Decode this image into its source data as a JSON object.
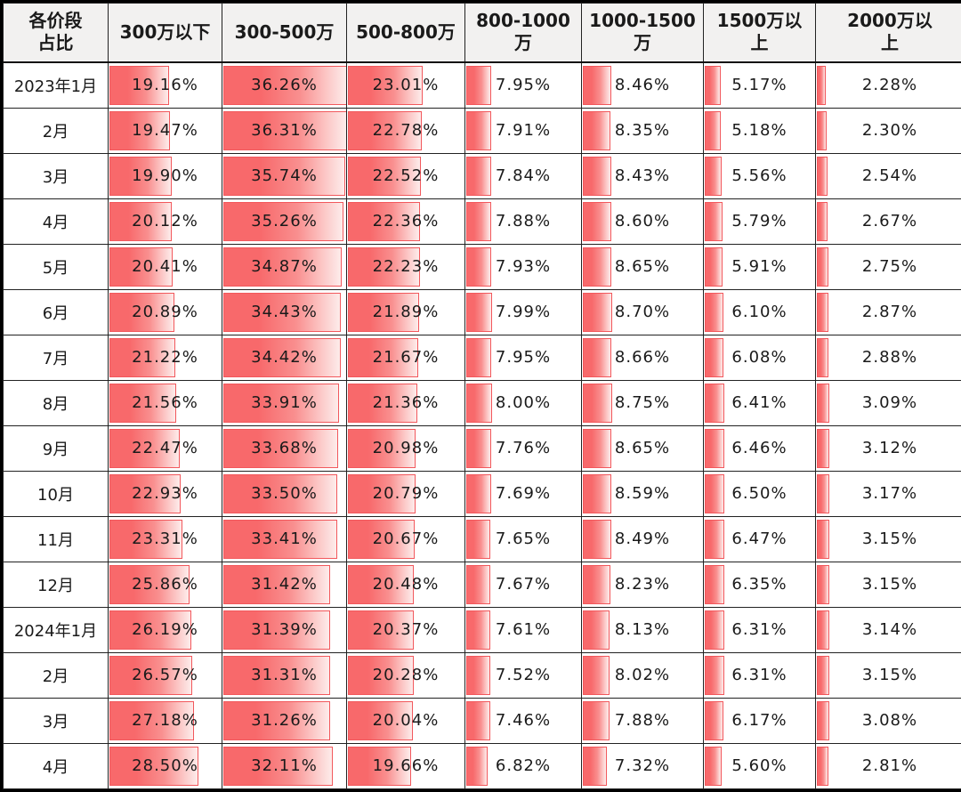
{
  "colors": {
    "bar_fill": "#f8696b",
    "bar_fade": "#fdeceb",
    "bar_border": "#f2585c",
    "header_bg": "#f2f1f0",
    "grid_border": "#222222",
    "outer_border": "#000000",
    "text": "#1a1a1a"
  },
  "chart_data": {
    "type": "table",
    "title": "各价段占比",
    "corner_label": "各价段\n占比",
    "unit": "%",
    "bar_scale_max": 36.31,
    "bar_style": "red gradient data bars, length proportional to value",
    "columns": [
      {
        "label": "300万以下",
        "display": "300万以下"
      },
      {
        "label": "300-500万",
        "display": "300-500万"
      },
      {
        "label": "500-800万",
        "display": "500-800万"
      },
      {
        "label": "800-1000万",
        "display": "800-1000\n万"
      },
      {
        "label": "1000-1500万",
        "display": "1000-1500\n万"
      },
      {
        "label": "1500万以上",
        "display": "1500万以\n上"
      },
      {
        "label": "2000万以上",
        "display": "2000万以\n上"
      }
    ],
    "rows": [
      {
        "month": "2023年1月",
        "values": [
          19.16,
          36.26,
          23.01,
          7.95,
          8.46,
          5.17,
          2.28
        ]
      },
      {
        "month": "2月",
        "values": [
          19.47,
          36.31,
          22.78,
          7.91,
          8.35,
          5.18,
          2.3
        ]
      },
      {
        "month": "3月",
        "values": [
          19.9,
          35.74,
          22.52,
          7.84,
          8.43,
          5.56,
          2.54
        ]
      },
      {
        "month": "4月",
        "values": [
          20.12,
          35.26,
          22.36,
          7.88,
          8.6,
          5.79,
          2.67
        ]
      },
      {
        "month": "5月",
        "values": [
          20.41,
          34.87,
          22.23,
          7.93,
          8.65,
          5.91,
          2.75
        ]
      },
      {
        "month": "6月",
        "values": [
          20.89,
          34.43,
          21.89,
          7.99,
          8.7,
          6.1,
          2.87
        ]
      },
      {
        "month": "7月",
        "values": [
          21.22,
          34.42,
          21.67,
          7.95,
          8.66,
          6.08,
          2.88
        ]
      },
      {
        "month": "8月",
        "values": [
          21.56,
          33.91,
          21.36,
          8.0,
          8.75,
          6.41,
          3.09
        ]
      },
      {
        "month": "9月",
        "values": [
          22.47,
          33.68,
          20.98,
          7.76,
          8.65,
          6.46,
          3.12
        ]
      },
      {
        "month": "10月",
        "values": [
          22.93,
          33.5,
          20.79,
          7.69,
          8.59,
          6.5,
          3.17
        ]
      },
      {
        "month": "11月",
        "values": [
          23.31,
          33.41,
          20.67,
          7.65,
          8.49,
          6.47,
          3.15
        ]
      },
      {
        "month": "12月",
        "values": [
          25.86,
          31.42,
          20.48,
          7.67,
          8.23,
          6.35,
          3.15
        ]
      },
      {
        "month": "2024年1月",
        "values": [
          26.19,
          31.39,
          20.37,
          7.61,
          8.13,
          6.31,
          3.14
        ]
      },
      {
        "month": "2月",
        "values": [
          26.57,
          31.31,
          20.28,
          7.52,
          8.02,
          6.31,
          3.15
        ]
      },
      {
        "month": "3月",
        "values": [
          27.18,
          31.26,
          20.04,
          7.46,
          7.88,
          6.17,
          3.08
        ]
      },
      {
        "month": "4月",
        "values": [
          28.5,
          32.11,
          19.66,
          6.82,
          7.32,
          5.6,
          2.81
        ]
      }
    ]
  }
}
